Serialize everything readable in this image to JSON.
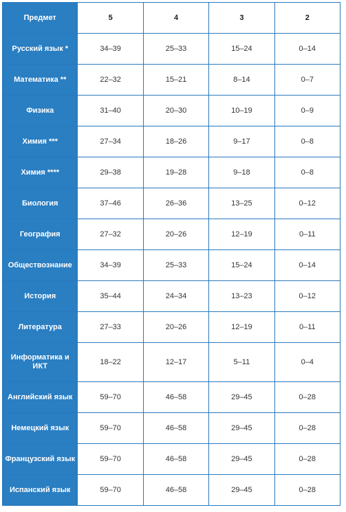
{
  "table": {
    "headers": [
      "Предмет",
      "5",
      "4",
      "3",
      "2"
    ],
    "rows": [
      {
        "subject": "Русский язык *",
        "g5": "34–39",
        "g4": "25–33",
        "g3": "15–24",
        "g2": "0–14"
      },
      {
        "subject": "Математика **",
        "g5": "22–32",
        "g4": "15–21",
        "g3": "8–14",
        "g2": "0–7"
      },
      {
        "subject": "Физика",
        "g5": "31–40",
        "g4": "20–30",
        "g3": "10–19",
        "g2": "0–9"
      },
      {
        "subject": "Химия ***",
        "g5": "27–34",
        "g4": "18–26",
        "g3": "9–17",
        "g2": "0–8"
      },
      {
        "subject": "Химия ****",
        "g5": "29–38",
        "g4": "19–28",
        "g3": "9–18",
        "g2": "0–8"
      },
      {
        "subject": "Биология",
        "g5": "37–46",
        "g4": "26–36",
        "g3": "13–25",
        "g2": "0–12"
      },
      {
        "subject": "География",
        "g5": "27–32",
        "g4": "20–26",
        "g3": "12–19",
        "g2": "0–11"
      },
      {
        "subject": "Обществознание",
        "g5": "34–39",
        "g4": "25–33",
        "g3": "15–24",
        "g2": "0–14"
      },
      {
        "subject": "История",
        "g5": "35–44",
        "g4": "24–34",
        "g3": "13–23",
        "g2": "0–12"
      },
      {
        "subject": "Литература",
        "g5": "27–33",
        "g4": "20–26",
        "g3": "12–19",
        "g2": "0–11"
      },
      {
        "subject": "Информатика и ИКТ",
        "g5": "18–22",
        "g4": "12–17",
        "g3": "5–11",
        "g2": "0–4"
      },
      {
        "subject": "Английский язык",
        "g5": "59–70",
        "g4": "46–58",
        "g3": "29–45",
        "g2": "0–28"
      },
      {
        "subject": "Немецкий язык",
        "g5": "59–70",
        "g4": "46–58",
        "g3": "29–45",
        "g2": "0–28"
      },
      {
        "subject": "Французский язык",
        "g5": "59–70",
        "g4": "46–58",
        "g3": "29–45",
        "g2": "0–28"
      },
      {
        "subject": "Испанский язык",
        "g5": "59–70",
        "g4": "46–58",
        "g3": "29–45",
        "g2": "0–28"
      }
    ]
  },
  "colors": {
    "accent": "#2a7ec2",
    "border": "#2779bd"
  }
}
